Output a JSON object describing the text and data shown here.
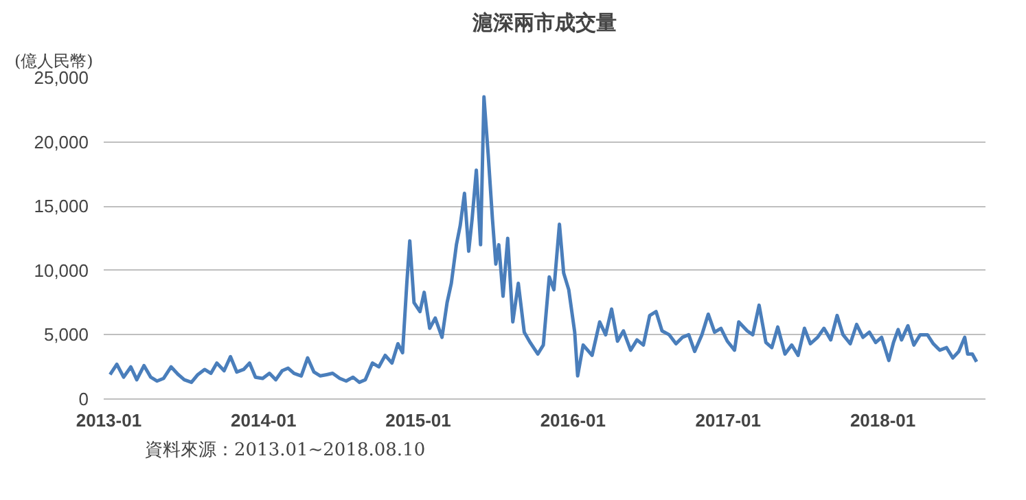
{
  "chart_data": {
    "type": "line",
    "title": "滬深兩市成交量",
    "ylabel": "(億人民幣)",
    "annotations": [
      "資料來源：2013.01~2018.08.10"
    ],
    "x": [
      "2013-01-04",
      "2013-01-20",
      "2013-02-05",
      "2013-02-22",
      "2013-03-08",
      "2013-03-25",
      "2013-04-10",
      "2013-04-25",
      "2013-05-10",
      "2013-05-28",
      "2013-06-14",
      "2013-06-28",
      "2013-07-15",
      "2013-07-30",
      "2013-08-15",
      "2013-08-30",
      "2013-09-13",
      "2013-09-30",
      "2013-10-15",
      "2013-10-30",
      "2013-11-15",
      "2013-11-29",
      "2013-12-13",
      "2013-12-30",
      "2014-01-15",
      "2014-01-30",
      "2014-02-14",
      "2014-02-28",
      "2014-03-14",
      "2014-03-31",
      "2014-04-15",
      "2014-04-30",
      "2014-05-15",
      "2014-05-30",
      "2014-06-13",
      "2014-06-30",
      "2014-07-15",
      "2014-07-31",
      "2014-08-15",
      "2014-08-29",
      "2014-09-15",
      "2014-09-30",
      "2014-10-15",
      "2014-10-31",
      "2014-11-14",
      "2014-11-25",
      "2014-12-05",
      "2014-12-12",
      "2014-12-22",
      "2015-01-05",
      "2015-01-15",
      "2015-01-28",
      "2015-02-10",
      "2015-02-26",
      "2015-03-10",
      "2015-03-20",
      "2015-04-01",
      "2015-04-10",
      "2015-04-20",
      "2015-04-30",
      "2015-05-08",
      "2015-05-18",
      "2015-05-28",
      "2015-06-05",
      "2015-06-15",
      "2015-06-25",
      "2015-07-03",
      "2015-07-10",
      "2015-07-20",
      "2015-07-31",
      "2015-08-12",
      "2015-08-25",
      "2015-09-08",
      "2015-09-22",
      "2015-10-10",
      "2015-10-23",
      "2015-11-06",
      "2015-11-17",
      "2015-11-30",
      "2015-12-10",
      "2015-12-22",
      "2016-01-05",
      "2016-01-12",
      "2016-01-25",
      "2016-02-15",
      "2016-03-04",
      "2016-03-18",
      "2016-04-01",
      "2016-04-15",
      "2016-04-29",
      "2016-05-16",
      "2016-05-31",
      "2016-06-15",
      "2016-06-30",
      "2016-07-15",
      "2016-07-29",
      "2016-08-15",
      "2016-08-31",
      "2016-09-15",
      "2016-09-30",
      "2016-10-14",
      "2016-10-31",
      "2016-11-15",
      "2016-11-30",
      "2016-12-15",
      "2016-12-30",
      "2017-01-16",
      "2017-01-26",
      "2017-02-15",
      "2017-02-28",
      "2017-03-15",
      "2017-03-31",
      "2017-04-14",
      "2017-04-28",
      "2017-05-15",
      "2017-05-31",
      "2017-06-15",
      "2017-06-30",
      "2017-07-14",
      "2017-07-31",
      "2017-08-15",
      "2017-08-31",
      "2017-09-15",
      "2017-09-29",
      "2017-10-16",
      "2017-10-31",
      "2017-11-15",
      "2017-11-30",
      "2017-12-15",
      "2017-12-29",
      "2018-01-15",
      "2018-01-26",
      "2018-02-06",
      "2018-02-14",
      "2018-03-01",
      "2018-03-15",
      "2018-03-30",
      "2018-04-16",
      "2018-04-30",
      "2018-05-15",
      "2018-05-31",
      "2018-06-15",
      "2018-06-29",
      "2018-07-13",
      "2018-07-20",
      "2018-07-31",
      "2018-08-10"
    ],
    "series": [
      {
        "color": "#4a7ebb",
        "values": [
          1900,
          2700,
          1700,
          2500,
          1500,
          2600,
          1700,
          1400,
          1600,
          2500,
          1900,
          1500,
          1300,
          1900,
          2300,
          2000,
          2800,
          2200,
          3300,
          2100,
          2300,
          2800,
          1700,
          1600,
          2000,
          1500,
          2200,
          2400,
          2000,
          1800,
          3200,
          2100,
          1800,
          1900,
          2000,
          1600,
          1400,
          1700,
          1300,
          1500,
          2800,
          2500,
          3400,
          2800,
          4300,
          3600,
          9000,
          12300,
          7500,
          6800,
          8300,
          5500,
          6300,
          4800,
          7500,
          9000,
          12000,
          13500,
          16000,
          11500,
          14000,
          17800,
          12000,
          23500,
          19000,
          14000,
          10500,
          12000,
          8000,
          12500,
          6000,
          9000,
          5200,
          4400,
          3500,
          4200,
          9500,
          8500,
          13600,
          9800,
          8500,
          5200,
          1800,
          4200,
          3400,
          6000,
          5000,
          7000,
          4500,
          5300,
          3800,
          4600,
          4200,
          6500,
          6800,
          5300,
          5000,
          4300,
          4800,
          5000,
          3700,
          5000,
          6600,
          5200,
          5500,
          4500,
          3800,
          6000,
          5300,
          5000,
          7300,
          4400,
          4000,
          5600,
          3500,
          4200,
          3400,
          5500,
          4300,
          4800,
          5500,
          4600,
          6500,
          5000,
          4300,
          5800,
          4800,
          5200,
          4400,
          4800,
          3000,
          4400,
          5400,
          4600,
          5700,
          4200,
          5000,
          5000,
          4300,
          3800,
          4000,
          3200,
          3700,
          4800,
          3500,
          3500,
          2900
        ]
      }
    ],
    "xlim": [
      "2012-12-20",
      "2018-08-31"
    ],
    "xticks": [
      {
        "value": "2013-01-01",
        "label": "2013-01"
      },
      {
        "value": "2014-01-01",
        "label": "2014-01"
      },
      {
        "value": "2015-01-01",
        "label": "2015-01"
      },
      {
        "value": "2016-01-01",
        "label": "2016-01"
      },
      {
        "value": "2017-01-01",
        "label": "2017-01"
      },
      {
        "value": "2018-01-01",
        "label": "2018-01"
      }
    ],
    "ylim": [
      0,
      25000
    ],
    "yticks": [
      0,
      {
        "value": 5000,
        "label": "5,000"
      },
      {
        "value": 10000,
        "label": "10,000"
      },
      {
        "value": 15000,
        "label": "15,000"
      },
      {
        "value": 20000,
        "label": "20,000"
      },
      {
        "value": 25000,
        "label": "25,000"
      }
    ],
    "grid": "y",
    "marker": "none",
    "line_style": "solid"
  }
}
